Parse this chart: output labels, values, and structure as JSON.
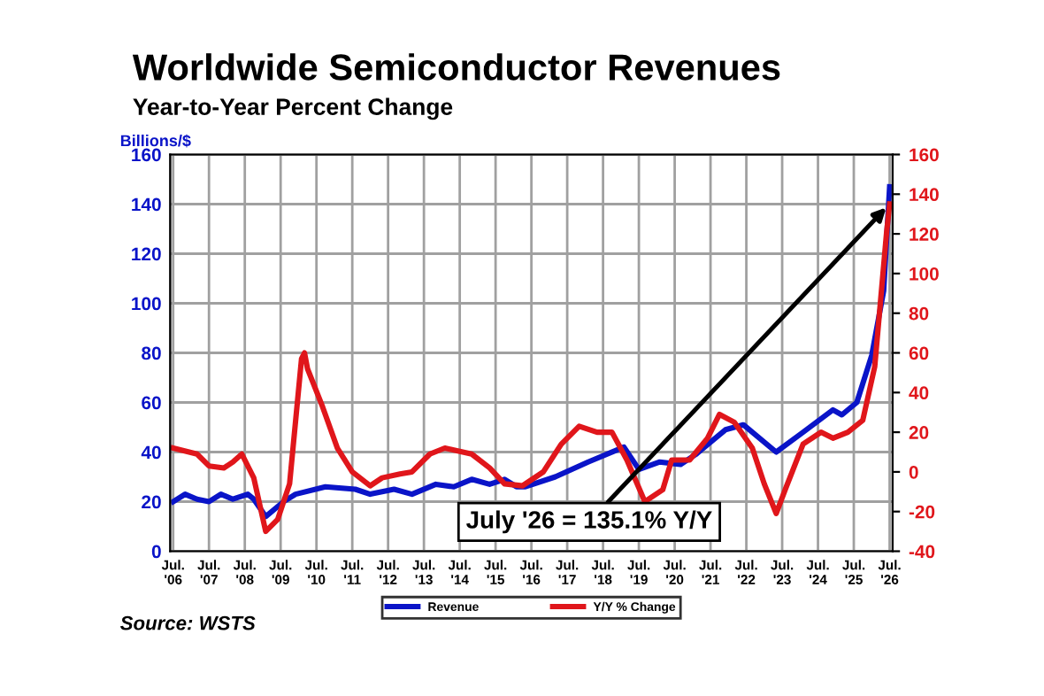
{
  "chart_data": {
    "type": "line",
    "title": "Worldwide Semiconductor Revenues",
    "subtitle": "Year-to-Year Percent Change",
    "ylabel": "Billions/$",
    "xlim": [
      "2006-06",
      "2026-08"
    ],
    "xticks": [
      {
        "value": "2006-07",
        "label": "Jul.\n'06"
      },
      {
        "value": "2007-07",
        "label": "Jul.\n'07"
      },
      {
        "value": "2008-07",
        "label": "Jul.\n'08"
      },
      {
        "value": "2009-07",
        "label": "Jul.\n'09"
      },
      {
        "value": "2010-07",
        "label": "Jul.\n'10"
      },
      {
        "value": "2011-07",
        "label": "Jul.\n'11"
      },
      {
        "value": "2012-07",
        "label": "Jul.\n'12"
      },
      {
        "value": "2013-07",
        "label": "Jul.\n'13"
      },
      {
        "value": "2014-07",
        "label": "Jul.\n'14"
      },
      {
        "value": "2015-07",
        "label": "Jul.\n'15"
      },
      {
        "value": "2016-07",
        "label": "Jul.\n'16"
      },
      {
        "value": "2017-07",
        "label": "Jul.\n'17"
      },
      {
        "value": "2018-07",
        "label": "Jul.\n'18"
      },
      {
        "value": "2019-07",
        "label": "Jul.\n'19"
      },
      {
        "value": "2020-07",
        "label": "Jul.\n'20"
      },
      {
        "value": "2021-07",
        "label": "Jul.\n'21"
      },
      {
        "value": "2022-07",
        "label": "Jul.\n'22"
      },
      {
        "value": "2023-07",
        "label": "Jul.\n'23"
      },
      {
        "value": "2024-07",
        "label": "Jul.\n'24"
      },
      {
        "value": "2025-07",
        "label": "Jul.\n'25"
      },
      {
        "value": "2026-07",
        "label": "Jul.\n'26"
      }
    ],
    "ylim": [
      0,
      160
    ],
    "yticks": [
      0,
      20,
      40,
      60,
      80,
      100,
      120,
      140,
      160
    ],
    "y2lim": [
      -40,
      160
    ],
    "y2ticks": [
      -40,
      -20,
      0,
      20,
      40,
      60,
      80,
      100,
      120,
      140,
      160
    ],
    "grid": true,
    "legend": "bottom",
    "line_style": "solid",
    "marker": "none",
    "series": [
      {
        "name": "Revenue",
        "color": "#0a14c8",
        "x": [
          "2006-07",
          "2006-11",
          "2007-03",
          "2007-07",
          "2007-11",
          "2008-03",
          "2008-08",
          "2008-10",
          "2009-02",
          "2009-08",
          "2009-12",
          "2010-10",
          "2011-08",
          "2012-01",
          "2012-09",
          "2013-03",
          "2013-11",
          "2014-05",
          "2014-11",
          "2015-05",
          "2015-10",
          "2016-02",
          "2016-05",
          "2017-03",
          "2018-02",
          "2019-02",
          "2019-07",
          "2020-02",
          "2020-09",
          "2021-02",
          "2021-12",
          "2022-06",
          "2023-05",
          "2024-02",
          "2024-12",
          "2025-03",
          "2025-08",
          "2026-01",
          "2026-05",
          "2026-07"
        ],
        "values": [
          20,
          23,
          21,
          20,
          23,
          21,
          23,
          21,
          14,
          20,
          23,
          26,
          25,
          23,
          25,
          23,
          27,
          26,
          29,
          27,
          29,
          26,
          26,
          30,
          36,
          42,
          33,
          36,
          35,
          39,
          49,
          51,
          40,
          48,
          57,
          55,
          60,
          79,
          105,
          147
        ]
      },
      {
        "name": "Y/Y % Change",
        "color": "#e0161b",
        "axis": "y2",
        "x": [
          "2006-07",
          "2007-03",
          "2007-07",
          "2007-12",
          "2008-03",
          "2008-06",
          "2008-10",
          "2009-02",
          "2009-06",
          "2009-10",
          "2010-02",
          "2010-03",
          "2010-04",
          "2010-09",
          "2011-02",
          "2011-07",
          "2012-01",
          "2012-05",
          "2012-11",
          "2013-03",
          "2013-09",
          "2014-02",
          "2014-11",
          "2015-05",
          "2015-10",
          "2016-04",
          "2016-05",
          "2016-11",
          "2017-05",
          "2017-11",
          "2018-05",
          "2018-10",
          "2019-03",
          "2019-09",
          "2020-03",
          "2020-06",
          "2020-12",
          "2021-06",
          "2021-10",
          "2022-03",
          "2022-09",
          "2023-01",
          "2023-05",
          "2023-08",
          "2024-02",
          "2024-08",
          "2024-12",
          "2025-05",
          "2025-10",
          "2026-02",
          "2026-06",
          "2026-07"
        ],
        "values": [
          12,
          9,
          3,
          2,
          5,
          9,
          -3,
          -30,
          -24,
          -6,
          57,
          60,
          52,
          33,
          12,
          0,
          -7,
          -3,
          -1,
          0,
          9,
          12,
          9,
          2,
          -6,
          -7,
          -6,
          0,
          14,
          23,
          20,
          20,
          6,
          -15,
          -9,
          6,
          6,
          17,
          29,
          25,
          12,
          -6,
          -21,
          -9,
          14,
          20,
          17,
          20,
          26,
          53,
          121,
          135.1
        ]
      }
    ],
    "annotations": [
      {
        "text": "July '26 = 135.1% Y/Y",
        "x": "2026-07",
        "y": 135.1
      },
      "Source: WSTS"
    ]
  }
}
